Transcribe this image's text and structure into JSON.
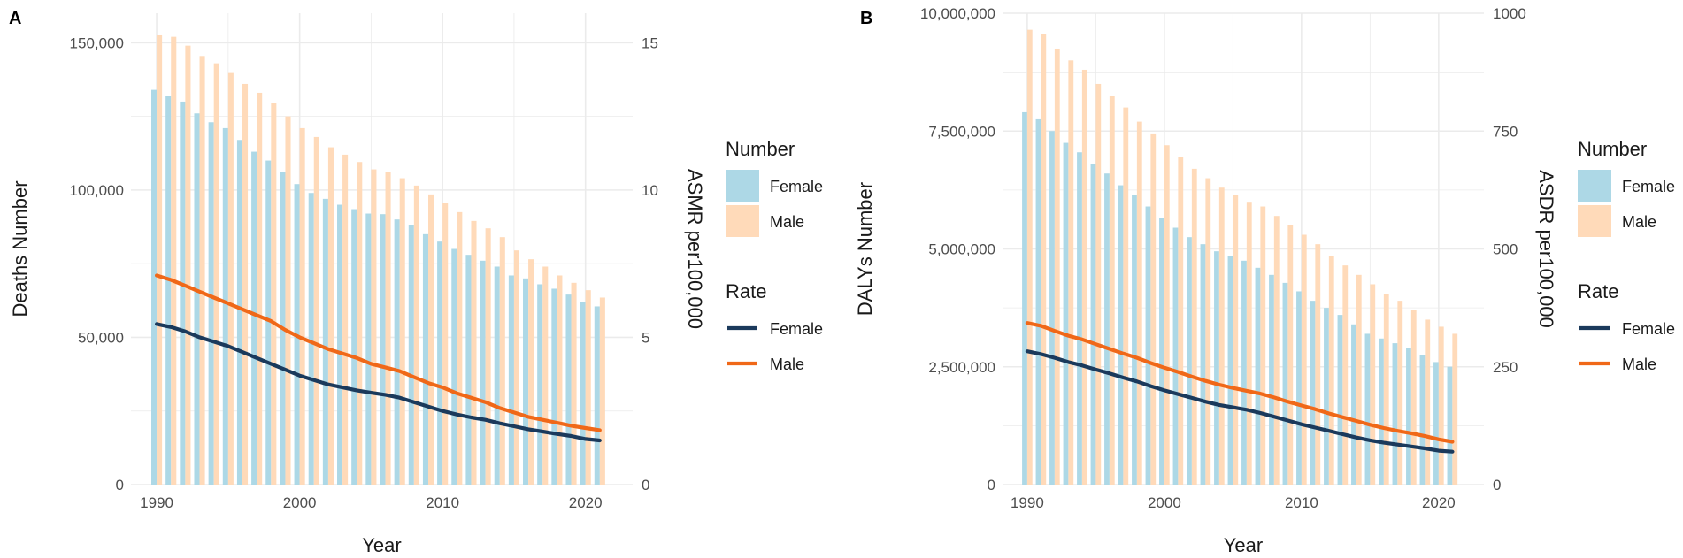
{
  "colors": {
    "female_bar": "#add8e6",
    "male_bar": "#ffdab9",
    "female_line": "#1b3a5c",
    "male_line": "#f06818",
    "grid": "#ebebeb"
  },
  "chart_data": [
    {
      "panel": "A",
      "type": "bar+line",
      "xlabel": "Year",
      "ylabel_left": "Deaths Number",
      "ylabel_right": "ASMR per100,000",
      "x_ticks": [
        1990,
        2000,
        2010,
        2020
      ],
      "y_left_ticks": [
        {
          "value": 0,
          "label": "0"
        },
        {
          "value": 50000,
          "label": "50,000"
        },
        {
          "value": 100000,
          "label": "100,000"
        },
        {
          "value": 150000,
          "label": "150,000"
        }
      ],
      "y_right_ticks": [
        {
          "value": 0,
          "label": "0"
        },
        {
          "value": 5,
          "label": "5"
        },
        {
          "value": 10,
          "label": "10"
        },
        {
          "value": 15,
          "label": "15"
        }
      ],
      "ylim_left": [
        0,
        160000
      ],
      "ylim_right": [
        0,
        16
      ],
      "years": [
        1990,
        1991,
        1992,
        1993,
        1994,
        1995,
        1996,
        1997,
        1998,
        1999,
        2000,
        2001,
        2002,
        2003,
        2004,
        2005,
        2006,
        2007,
        2008,
        2009,
        2010,
        2011,
        2012,
        2013,
        2014,
        2015,
        2016,
        2017,
        2018,
        2019,
        2020,
        2021
      ],
      "bars": [
        {
          "name": "Female",
          "values": [
            134000,
            132000,
            130000,
            126000,
            123000,
            121000,
            117000,
            113000,
            110000,
            106000,
            102000,
            99000,
            97000,
            95000,
            93500,
            92000,
            91800,
            90000,
            88000,
            85000,
            82500,
            80000,
            78000,
            76000,
            74000,
            71000,
            70000,
            68000,
            66500,
            64500,
            62000,
            60500
          ]
        },
        {
          "name": "Male",
          "values": [
            152500,
            152000,
            149000,
            145500,
            143000,
            140000,
            136000,
            133000,
            129500,
            125000,
            121000,
            118000,
            114500,
            112000,
            109500,
            107000,
            106000,
            104000,
            101500,
            98500,
            95500,
            92500,
            89500,
            87000,
            84000,
            79500,
            76500,
            74000,
            71000,
            68500,
            66000,
            63500
          ]
        }
      ],
      "lines": [
        {
          "name": "Female",
          "values": [
            5.45,
            5.35,
            5.2,
            5.0,
            4.85,
            4.7,
            4.5,
            4.3,
            4.1,
            3.9,
            3.7,
            3.55,
            3.4,
            3.3,
            3.2,
            3.12,
            3.05,
            2.95,
            2.8,
            2.65,
            2.5,
            2.38,
            2.28,
            2.2,
            2.08,
            1.98,
            1.88,
            1.8,
            1.72,
            1.65,
            1.55,
            1.5
          ]
        },
        {
          "name": "Male",
          "values": [
            7.1,
            6.95,
            6.75,
            6.55,
            6.35,
            6.15,
            5.95,
            5.75,
            5.55,
            5.25,
            5.0,
            4.8,
            4.6,
            4.45,
            4.3,
            4.1,
            3.98,
            3.85,
            3.65,
            3.45,
            3.3,
            3.1,
            2.95,
            2.8,
            2.6,
            2.45,
            2.3,
            2.2,
            2.1,
            2.0,
            1.92,
            1.85
          ]
        }
      ],
      "legend": {
        "number_title": "Number",
        "rate_title": "Rate",
        "labels": [
          "Female",
          "Male"
        ]
      }
    },
    {
      "panel": "B",
      "type": "bar+line",
      "xlabel": "Year",
      "ylabel_left": "DALYs Number",
      "ylabel_right": "ASDR per100,000",
      "x_ticks": [
        1990,
        2000,
        2010,
        2020
      ],
      "y_left_ticks": [
        {
          "value": 0,
          "label": "0"
        },
        {
          "value": 2500000,
          "label": "2,500,000"
        },
        {
          "value": 5000000,
          "label": "5,000,000"
        },
        {
          "value": 7500000,
          "label": "7,500,000"
        },
        {
          "value": 10000000,
          "label": "10,000,000"
        }
      ],
      "y_right_ticks": [
        {
          "value": 0,
          "label": "0"
        },
        {
          "value": 250,
          "label": "250"
        },
        {
          "value": 500,
          "label": "500"
        },
        {
          "value": 750,
          "label": "750"
        },
        {
          "value": 1000,
          "label": "1000"
        }
      ],
      "ylim_left": [
        0,
        10000000
      ],
      "ylim_right": [
        0,
        1000
      ],
      "years": [
        1990,
        1991,
        1992,
        1993,
        1994,
        1995,
        1996,
        1997,
        1998,
        1999,
        2000,
        2001,
        2002,
        2003,
        2004,
        2005,
        2006,
        2007,
        2008,
        2009,
        2010,
        2011,
        2012,
        2013,
        2014,
        2015,
        2016,
        2017,
        2018,
        2019,
        2020,
        2021
      ],
      "bars": [
        {
          "name": "Female",
          "values": [
            7900000,
            7750000,
            7500000,
            7250000,
            7050000,
            6800000,
            6600000,
            6350000,
            6150000,
            5900000,
            5650000,
            5450000,
            5250000,
            5100000,
            4950000,
            4850000,
            4750000,
            4600000,
            4450000,
            4280000,
            4100000,
            3900000,
            3750000,
            3600000,
            3400000,
            3200000,
            3100000,
            3000000,
            2900000,
            2750000,
            2600000,
            2500000
          ]
        },
        {
          "name": "Male",
          "values": [
            9650000,
            9550000,
            9250000,
            9000000,
            8800000,
            8500000,
            8250000,
            8000000,
            7700000,
            7450000,
            7200000,
            6950000,
            6700000,
            6500000,
            6300000,
            6150000,
            6000000,
            5900000,
            5700000,
            5500000,
            5300000,
            5100000,
            4850000,
            4650000,
            4450000,
            4250000,
            4050000,
            3900000,
            3700000,
            3500000,
            3350000,
            3200000
          ]
        }
      ],
      "lines": [
        {
          "name": "Female",
          "values": [
            283,
            277,
            269,
            260,
            253,
            244,
            236,
            227,
            219,
            209,
            200,
            192,
            184,
            176,
            169,
            164,
            159,
            152,
            144,
            136,
            128,
            121,
            114,
            107,
            100,
            94,
            89,
            85,
            81,
            77,
            72,
            70
          ]
        },
        {
          "name": "Male",
          "values": [
            343,
            337,
            326,
            316,
            308,
            298,
            288,
            278,
            269,
            258,
            248,
            239,
            229,
            220,
            212,
            205,
            199,
            193,
            185,
            176,
            168,
            160,
            151,
            143,
            135,
            127,
            120,
            114,
            109,
            103,
            96,
            91
          ]
        }
      ],
      "legend": {
        "number_title": "Number",
        "rate_title": "Rate",
        "labels": [
          "Female",
          "Male"
        ]
      }
    }
  ]
}
